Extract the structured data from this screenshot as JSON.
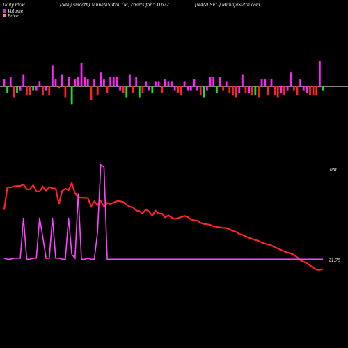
{
  "header": {
    "left": "Daily PVM",
    "mid": "(5day smooth) MunafaSutra(TM) charts for 531672",
    "right": "[NANI SEC] MunafaSutra.com"
  },
  "legend": [
    {
      "label": "Volume",
      "color": "#cc33cc"
    },
    {
      "label": "Price",
      "color": "#ff8866"
    }
  ],
  "colors": {
    "background": "#000000",
    "zero_line": "#ffffff",
    "up": "#ff22ff",
    "down": "#ff2222",
    "green": "#22dd22",
    "price_line": "#ff2222",
    "volume_line": "#ff44ff"
  },
  "chart_data": [
    {
      "type": "bar",
      "name": "pvm",
      "values": [
        3,
        -3,
        4,
        -5,
        -3,
        -2,
        5,
        -4,
        -4,
        -2,
        -2,
        2,
        -4,
        -2,
        -4,
        9,
        3,
        -1,
        5,
        -5,
        4,
        -8,
        3,
        4,
        10,
        4,
        3,
        -6,
        3,
        -4,
        6,
        3,
        -3,
        4,
        4,
        4,
        -2,
        -3,
        -5,
        5,
        -3,
        4,
        -5,
        -3,
        2,
        -2,
        -3,
        2,
        2,
        -3,
        3,
        2,
        2,
        -2,
        -3,
        -4,
        2,
        -2,
        -2,
        3,
        -2,
        -4,
        -5,
        -2,
        4,
        4,
        -3,
        4,
        -2,
        2,
        -3,
        -4,
        -5,
        -3,
        5,
        -3,
        -3,
        -4,
        -4,
        -5,
        3,
        3,
        -4,
        3,
        -4,
        -5,
        -3,
        -4,
        -2,
        6,
        -2,
        -4,
        3,
        -2,
        -3,
        -4,
        -4,
        -4,
        11,
        -2
      ],
      "colors": [
        "m",
        "g",
        "m",
        "r",
        "g",
        "m",
        "m",
        "r",
        "r",
        "g",
        "m",
        "m",
        "r",
        "m",
        "r",
        "m",
        "m",
        "r",
        "m",
        "r",
        "m",
        "g",
        "m",
        "m",
        "m",
        "m",
        "m",
        "r",
        "m",
        "r",
        "m",
        "m",
        "r",
        "m",
        "m",
        "m",
        "m",
        "r",
        "g",
        "m",
        "r",
        "m",
        "g",
        "r",
        "m",
        "m",
        "g",
        "m",
        "m",
        "r",
        "m",
        "m",
        "m",
        "m",
        "r",
        "r",
        "m",
        "m",
        "m",
        "m",
        "m",
        "r",
        "g",
        "m",
        "m",
        "m",
        "g",
        "m",
        "r",
        "m",
        "r",
        "r",
        "r",
        "m",
        "m",
        "r",
        "m",
        "r",
        "g",
        "r",
        "m",
        "m",
        "r",
        "m",
        "r",
        "r",
        "m",
        "r",
        "m",
        "m",
        "r",
        "r",
        "m",
        "m",
        "m",
        "r",
        "r",
        "r",
        "m",
        "g"
      ]
    },
    {
      "type": "line",
      "name": "Price",
      "values": [
        11.5,
        95.4,
        95.4,
        98.9,
        100.8,
        100.8,
        106.2,
        88.6,
        88.6,
        103.3,
        80.6,
        80.6,
        97.9,
        82.1,
        97.0,
        92.3,
        91.0,
        33.7,
        82.5,
        91.2,
        85.2,
        112.3,
        73.5,
        58.8,
        56.4,
        56.4,
        55.4,
        25.1,
        43.2,
        30.3,
        44.5,
        24.3,
        37.8,
        33.8,
        38.9,
        43.9,
        43.9,
        40.6,
        30.3,
        23.4,
        20.8,
        9.3,
        7.0,
        -1.2,
        13.0,
        5.3,
        -9.7,
        8.2,
        -1.6,
        -2.4,
        -16.4,
        -8.8,
        -16.8,
        -22.8,
        -18.8,
        -15.1,
        -11.1,
        -15.1,
        -23.9,
        -27.3,
        -27.9,
        -36.6,
        -40.4,
        -41.9,
        -43.9,
        -49.2,
        -51.2,
        -53.1,
        -55.1,
        -55.8,
        -60.6,
        -66.1,
        -70.0,
        -77.9,
        -80.9,
        -86.4,
        -91.7,
        -96.0,
        -100.3,
        -103.4,
        -109.3,
        -113.7,
        -117.0,
        -120.5,
        -126.9,
        -131.7,
        -137.4,
        -142.8,
        -146.6,
        -150.4,
        -155.1,
        -164.0,
        -175.3,
        -180.7,
        -186.1,
        -194.6,
        -203.6,
        -210.2,
        -211.5,
        -207.8
      ],
      "end_label": "21.75"
    },
    {
      "type": "line",
      "name": "Volume",
      "values": [
        3,
        2,
        2,
        3,
        3,
        3,
        45,
        2,
        2,
        3,
        3,
        45,
        25,
        3,
        3,
        45,
        3,
        3,
        2,
        2,
        45,
        7,
        3,
        70,
        2,
        2,
        3,
        2,
        2,
        30,
        100,
        98,
        2,
        2,
        2,
        2,
        2,
        2,
        2,
        2,
        2,
        2,
        2,
        2,
        2,
        2,
        2,
        2,
        2,
        2,
        2,
        2,
        2,
        2,
        2,
        2,
        2,
        2,
        2,
        2,
        2,
        2,
        2,
        2,
        2,
        2,
        2,
        2,
        2,
        2,
        2,
        2,
        2,
        2,
        2,
        2,
        2,
        2,
        2,
        2,
        2,
        2,
        2,
        2,
        2,
        2,
        2,
        2,
        2,
        2,
        2,
        2,
        2,
        2,
        2,
        2,
        2,
        2,
        2,
        2
      ],
      "end_label": "0M"
    }
  ]
}
